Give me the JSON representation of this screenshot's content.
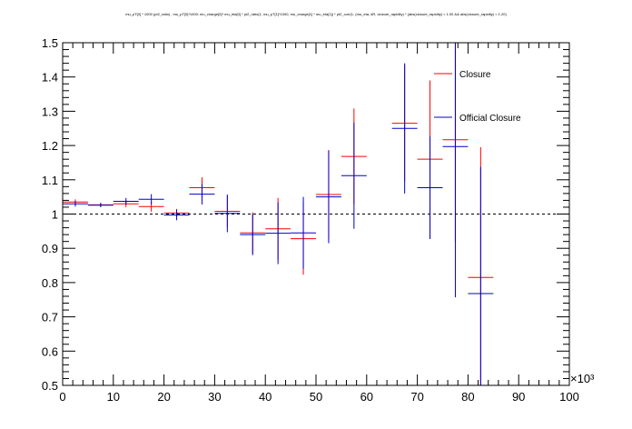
{
  "chart_data": {
    "type": "scatter",
    "title": "mu_pT[0] * 1000 (pt2_ratio) , mu_pT[0]*1000; mu_charge[0]* mu_eta[0] * pt2_ratio(1, mu_pT[1]*1000, mu_charge[1] * mu_eta[1]) * pt2_corr(1, (mu_eta, dR, closure_rapidity) * (abs(closure_rapidity) < 1.00 && abs(closure_rapidity) < 1.20)",
    "x_multiplier": "×10³",
    "xlim": [
      0,
      100
    ],
    "ylim": [
      0.5,
      1.5
    ],
    "x_ticks": [
      0,
      10,
      20,
      30,
      40,
      50,
      60,
      70,
      80,
      90,
      100
    ],
    "y_ticks": [
      0.5,
      0.6,
      0.7,
      0.8,
      0.9,
      1,
      1.1,
      1.2,
      1.3,
      1.4,
      1.5
    ],
    "reference_line": 1.0,
    "legend_position": "top-right",
    "series": [
      {
        "name": "Closure",
        "color": "#ff0000",
        "x_err": 2.5,
        "points": [
          {
            "x": 2.5,
            "y": 1.035,
            "yerr": 0.008
          },
          {
            "x": 7.5,
            "y": 1.027,
            "yerr": 0.006
          },
          {
            "x": 12.5,
            "y": 1.03,
            "yerr": 0.01
          },
          {
            "x": 17.5,
            "y": 1.022,
            "yerr": 0.015
          },
          {
            "x": 22.5,
            "y": 1.003,
            "yerr": 0.012
          },
          {
            "x": 27.5,
            "y": 1.077,
            "yerr": 0.03
          },
          {
            "x": 32.5,
            "y": 1.008,
            "yerr": 0.045
          },
          {
            "x": 37.5,
            "y": 0.945,
            "yerr": 0.06
          },
          {
            "x": 42.5,
            "y": 0.957,
            "yerr": 0.09
          },
          {
            "x": 47.5,
            "y": 0.928,
            "yerr": 0.105
          },
          {
            "x": 52.5,
            "y": 1.057,
            "yerr": 0.13
          },
          {
            "x": 57.5,
            "y": 1.168,
            "yerr": 0.14
          },
          {
            "x": 67.5,
            "y": 1.265,
            "yerr": 0.17
          },
          {
            "x": 72.5,
            "y": 1.16,
            "yerr": 0.23
          },
          {
            "x": 77.5,
            "y": 1.217,
            "yerr": 0.3
          },
          {
            "x": 82.5,
            "y": 0.815,
            "yerr": 0.38
          }
        ]
      },
      {
        "name": "Official Closure",
        "color": "#0000cc",
        "x_err": 2.5,
        "points": [
          {
            "x": 2.5,
            "y": 1.03,
            "yerr": 0.008
          },
          {
            "x": 7.5,
            "y": 1.026,
            "yerr": 0.006
          },
          {
            "x": 12.5,
            "y": 1.037,
            "yerr": 0.01
          },
          {
            "x": 17.5,
            "y": 1.043,
            "yerr": 0.015
          },
          {
            "x": 22.5,
            "y": 0.997,
            "yerr": 0.015
          },
          {
            "x": 27.5,
            "y": 1.058,
            "yerr": 0.03
          },
          {
            "x": 32.5,
            "y": 1.002,
            "yerr": 0.055
          },
          {
            "x": 37.5,
            "y": 0.94,
            "yerr": 0.06
          },
          {
            "x": 42.5,
            "y": 0.944,
            "yerr": 0.09
          },
          {
            "x": 47.5,
            "y": 0.945,
            "yerr": 0.105
          },
          {
            "x": 52.5,
            "y": 1.05,
            "yerr": 0.135
          },
          {
            "x": 57.5,
            "y": 1.112,
            "yerr": 0.155
          },
          {
            "x": 67.5,
            "y": 1.25,
            "yerr": 0.19
          },
          {
            "x": 72.5,
            "y": 1.077,
            "yerr": 0.15
          },
          {
            "x": 77.5,
            "y": 1.197,
            "yerr": 0.44
          },
          {
            "x": 82.5,
            "y": 0.768,
            "yerr": 0.37
          }
        ]
      }
    ]
  }
}
